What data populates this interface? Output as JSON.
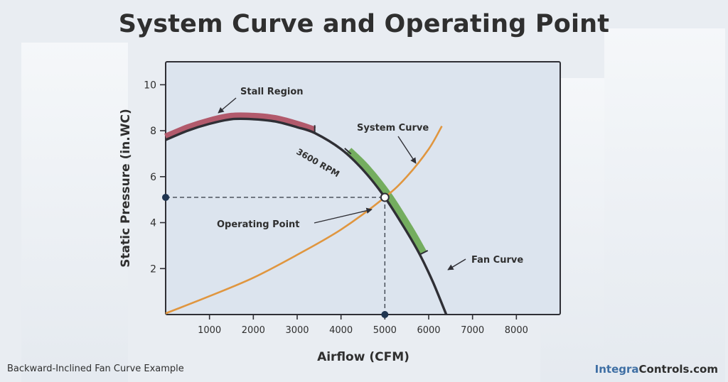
{
  "title": "System Curve and Operating Point",
  "caption": "Backward-Inclined Fan Curve Example",
  "brand": {
    "part1": "Integra",
    "part2": "Controls.com"
  },
  "colors": {
    "fan_curve": "#2f2f35",
    "system_curve": "#e0963f",
    "stall_region": "#b25a6c",
    "operating_range": "#74ad5f",
    "plot_bg": "#dce4ee",
    "guide_point": "#1f3550"
  },
  "chart_data": {
    "type": "line",
    "title": "System Curve and Operating Point",
    "xlabel": "Airflow (CFM)",
    "ylabel": "Static Pressure (in.WC)",
    "xlim": [
      0,
      9000
    ],
    "ylim": [
      0,
      11
    ],
    "xticks": [
      1000,
      2000,
      3000,
      4000,
      5000,
      6000,
      7000,
      8000
    ],
    "yticks": [
      2,
      4,
      6,
      8,
      10
    ],
    "grid": false,
    "series": [
      {
        "name": "Fan Curve",
        "x": [
          0,
          500,
          1000,
          1500,
          2000,
          2500,
          3000,
          3400,
          4000,
          4500,
          5000,
          5500,
          5800,
          6100,
          6400
        ],
        "y": [
          7.6,
          8.0,
          8.3,
          8.5,
          8.5,
          8.4,
          8.15,
          7.9,
          7.2,
          6.3,
          5.1,
          3.6,
          2.6,
          1.4,
          0
        ]
      },
      {
        "name": "System Curve",
        "x": [
          0,
          1000,
          2000,
          3000,
          4000,
          5000,
          5500,
          6000,
          6300
        ],
        "y": [
          0.05,
          0.8,
          1.6,
          2.6,
          3.7,
          5.1,
          6.0,
          7.2,
          8.2
        ]
      }
    ],
    "highlights": [
      {
        "label": "Stall Region",
        "x_range": [
          0,
          3400
        ]
      },
      {
        "label": "Operating Range",
        "x_range": [
          4100,
          5800
        ]
      }
    ],
    "operating_point": {
      "x": 5000,
      "y": 5.1
    },
    "annotations": [
      "Stall Region",
      "3600 RPM",
      "System Curve",
      "Operating Point",
      "Fan Curve"
    ]
  }
}
